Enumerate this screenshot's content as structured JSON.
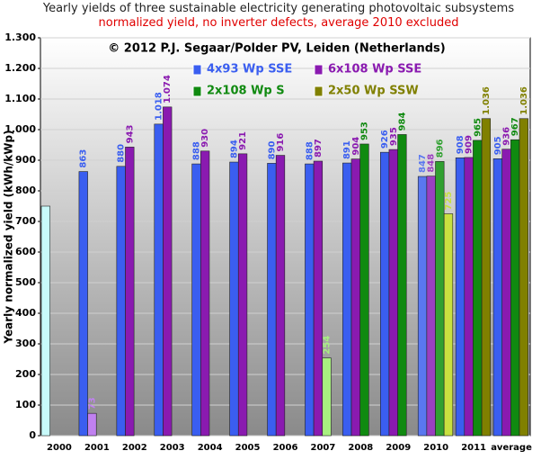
{
  "chart_data": {
    "type": "bar",
    "title": "Yearly yields of three sustainable electricity generating photovoltaic subsystems",
    "subtitle": "normalized yield, no inverter defects, average 2010 excluded",
    "annotation": "© 2012 P.J. Segaar/Polder PV, Leiden (Netherlands)",
    "ylabel": "Yearly normalized yield (kWh/kWp)",
    "categories": [
      "2000",
      "2001",
      "2002",
      "2003",
      "2004",
      "2005",
      "2006",
      "2007",
      "2008",
      "2009",
      "2010",
      "2011",
      "average"
    ],
    "ylim": [
      0,
      1300
    ],
    "yticks": [
      0,
      100,
      200,
      300,
      400,
      500,
      600,
      700,
      800,
      900,
      {
        "value": 1000,
        "label": "1.000"
      },
      {
        "value": 1100,
        "label": "1.100"
      },
      {
        "value": 1200,
        "label": "1.200"
      },
      {
        "value": 1300,
        "label": "1.300"
      }
    ],
    "grid": true,
    "series": [
      {
        "name": "4x93 Wp SSE",
        "color": "#3a5ef0",
        "values": [
          750,
          863,
          880,
          1018,
          888,
          894,
          890,
          888,
          891,
          926,
          847,
          908,
          905
        ],
        "value_labels": [
          null,
          "863",
          "880",
          "1.018",
          "888",
          "894",
          "890",
          "888",
          "891",
          "926",
          "847",
          "908",
          "905"
        ],
        "colors": [
          "#c8fafa",
          "#3a5ef0",
          "#3a5ef0",
          "#3a5ef0",
          "#3a5ef0",
          "#3a5ef0",
          "#3a5ef0",
          "#3a5ef0",
          "#3a5ef0",
          "#3a5ef0",
          "#5a78f0",
          "#3a5ef0",
          "#3a5ef0"
        ]
      },
      {
        "name": "6x108 Wp SSE",
        "color": "#8a1ab0",
        "values": [
          null,
          73,
          943,
          1074,
          930,
          921,
          916,
          897,
          904,
          935,
          848,
          909,
          936
        ],
        "value_labels": [
          null,
          "73",
          "943",
          "1.074",
          "930",
          "921",
          "916",
          "897",
          "904",
          "935",
          "848",
          "909",
          "936"
        ],
        "colors": [
          "#8a1ab0",
          "#c080f0",
          "#8a1ab0",
          "#8a1ab0",
          "#8a1ab0",
          "#8a1ab0",
          "#8a1ab0",
          "#8a1ab0",
          "#8a1ab0",
          "#8a1ab0",
          "#9a40c0",
          "#8a1ab0",
          "#8a1ab0"
        ]
      },
      {
        "name": "2x108 Wp S",
        "color": "#108a10",
        "values": [
          null,
          null,
          null,
          null,
          null,
          null,
          null,
          254,
          953,
          984,
          896,
          965,
          967
        ],
        "value_labels": [
          null,
          null,
          null,
          null,
          null,
          null,
          null,
          "254",
          "953",
          "984",
          "896",
          "965",
          "967"
        ],
        "colors": [
          "#108a10",
          "#108a10",
          "#108a10",
          "#108a10",
          "#108a10",
          "#108a10",
          "#108a10",
          "#a8f080",
          "#108a10",
          "#108a10",
          "#30a030",
          "#108a10",
          "#108a10"
        ]
      },
      {
        "name": "2x50 Wp SSW",
        "color": "#808000",
        "values": [
          null,
          null,
          null,
          null,
          null,
          null,
          null,
          null,
          null,
          null,
          725,
          1036,
          1036
        ],
        "value_labels": [
          null,
          null,
          null,
          null,
          null,
          null,
          null,
          null,
          null,
          null,
          "725",
          "1.036",
          "1.036"
        ],
        "colors": [
          "#808000",
          "#808000",
          "#808000",
          "#808000",
          "#808000",
          "#808000",
          "#808000",
          "#808000",
          "#808000",
          "#808000",
          "#c8e040",
          "#808000",
          "#808000"
        ]
      }
    ]
  }
}
